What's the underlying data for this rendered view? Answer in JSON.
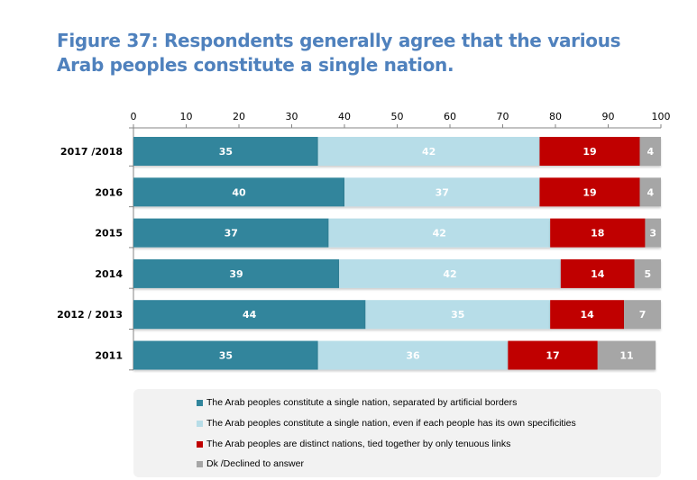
{
  "title": "Figure 37: Respondents generally agree that the various Arab peoples constitute a single nation.",
  "chart_data": {
    "type": "bar",
    "orientation": "horizontal",
    "stacked": true,
    "title": "Figure 37: Respondents generally agree that the various Arab peoples constitute a single nation.",
    "xlabel": "",
    "ylabel": "",
    "xlim": [
      0,
      100
    ],
    "x_ticks": [
      0,
      10,
      20,
      30,
      40,
      50,
      60,
      70,
      80,
      90,
      100
    ],
    "x_tick_labels": [
      "0",
      "10",
      "20",
      "30",
      "40",
      "50",
      "60",
      "70",
      "80",
      "90",
      "100"
    ],
    "x_axis_position": "top",
    "grid": false,
    "legend_position": "bottom",
    "categories": [
      "2017 /2018",
      "2016",
      "2015",
      "2014",
      "2012 / 2013",
      "2011"
    ],
    "series": [
      {
        "name": "The Arab peoples constitute a single nation, separated by artificial borders",
        "color": "#31859c",
        "values": [
          35,
          40,
          37,
          39,
          44,
          35
        ]
      },
      {
        "name": "The Arab peoples constitute a single nation, even if each people has its own specificities",
        "color": "#b7dde8",
        "values": [
          42,
          37,
          42,
          42,
          35,
          36
        ]
      },
      {
        "name": "The Arab peoples are distinct nations, tied together by only tenuous links",
        "color": "#c00000",
        "values": [
          19,
          19,
          18,
          14,
          14,
          17
        ]
      },
      {
        "name": "Dk /Declined to answer",
        "color": "#a6a6a6",
        "values": [
          4,
          4,
          3,
          5,
          7,
          11
        ]
      }
    ]
  }
}
